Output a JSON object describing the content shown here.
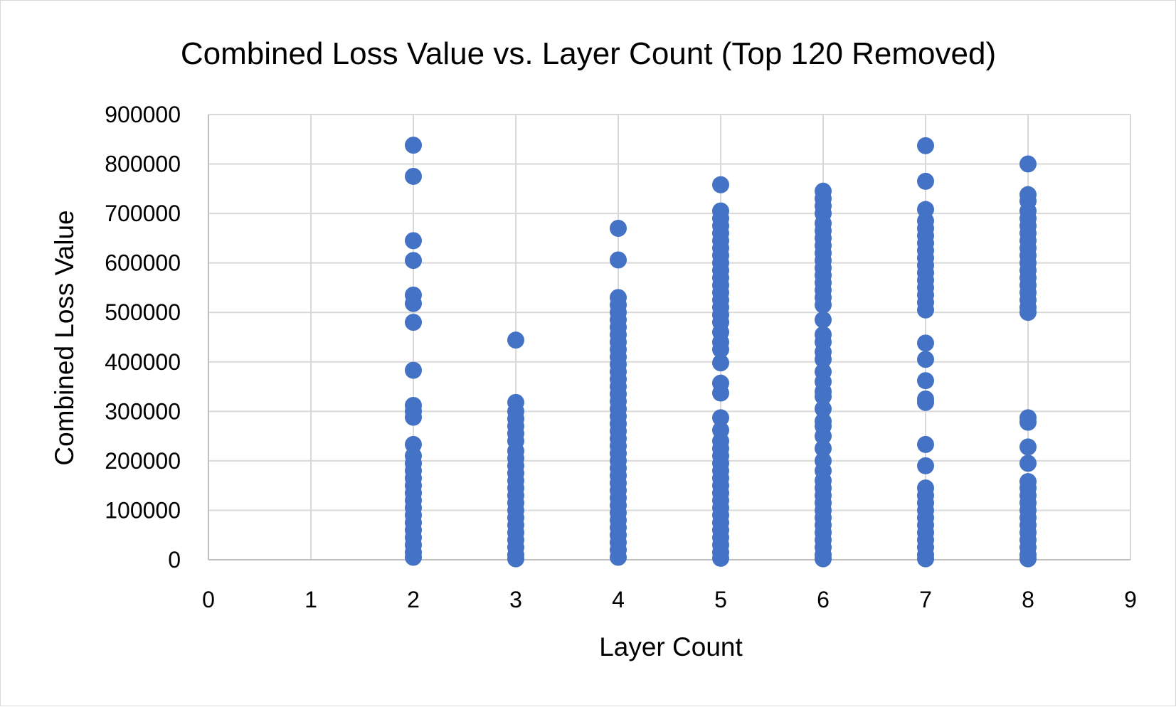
{
  "chart_data": {
    "type": "scatter",
    "title": "Combined Loss Value vs. Layer Count (Top 120 Removed)",
    "xlabel": "Layer Count",
    "ylabel": "Combined Loss Value",
    "xlim": [
      0,
      9
    ],
    "ylim": [
      0,
      900000
    ],
    "x_ticks": [
      "0",
      "1",
      "2",
      "3",
      "4",
      "5",
      "6",
      "7",
      "8",
      "9"
    ],
    "y_ticks": [
      "0",
      "100000",
      "200000",
      "300000",
      "400000",
      "500000",
      "600000",
      "700000",
      "800000",
      "900000"
    ],
    "grid": true,
    "legend": "none",
    "marker_color": "#4472C4",
    "series": [
      {
        "points": [
          {
            "x": 2,
            "y": 838000
          },
          {
            "x": 2,
            "y": 775000
          },
          {
            "x": 2,
            "y": 645000
          },
          {
            "x": 2,
            "y": 605000
          },
          {
            "x": 2,
            "y": 535000
          },
          {
            "x": 2,
            "y": 518000
          },
          {
            "x": 2,
            "y": 480000
          },
          {
            "x": 2,
            "y": 383000
          },
          {
            "x": 2,
            "y": 312000
          },
          {
            "x": 2,
            "y": 300000
          },
          {
            "x": 2,
            "y": 288000
          },
          {
            "x": 2,
            "y": 233000
          },
          {
            "x": 2,
            "y": 210000
          },
          {
            "x": 2,
            "y": 195000
          },
          {
            "x": 2,
            "y": 180000
          },
          {
            "x": 2,
            "y": 165000
          },
          {
            "x": 2,
            "y": 150000
          },
          {
            "x": 2,
            "y": 135000
          },
          {
            "x": 2,
            "y": 120000
          },
          {
            "x": 2,
            "y": 105000
          },
          {
            "x": 2,
            "y": 90000
          },
          {
            "x": 2,
            "y": 75000
          },
          {
            "x": 2,
            "y": 60000
          },
          {
            "x": 2,
            "y": 45000
          },
          {
            "x": 2,
            "y": 30000
          },
          {
            "x": 2,
            "y": 15000
          },
          {
            "x": 2,
            "y": 5000
          },
          {
            "x": 3,
            "y": 444000
          },
          {
            "x": 3,
            "y": 318000
          },
          {
            "x": 3,
            "y": 300000
          },
          {
            "x": 3,
            "y": 285000
          },
          {
            "x": 3,
            "y": 270000
          },
          {
            "x": 3,
            "y": 255000
          },
          {
            "x": 3,
            "y": 240000
          },
          {
            "x": 3,
            "y": 220000
          },
          {
            "x": 3,
            "y": 205000
          },
          {
            "x": 3,
            "y": 190000
          },
          {
            "x": 3,
            "y": 175000
          },
          {
            "x": 3,
            "y": 160000
          },
          {
            "x": 3,
            "y": 145000
          },
          {
            "x": 3,
            "y": 130000
          },
          {
            "x": 3,
            "y": 115000
          },
          {
            "x": 3,
            "y": 100000
          },
          {
            "x": 3,
            "y": 85000
          },
          {
            "x": 3,
            "y": 70000
          },
          {
            "x": 3,
            "y": 55000
          },
          {
            "x": 3,
            "y": 40000
          },
          {
            "x": 3,
            "y": 25000
          },
          {
            "x": 3,
            "y": 10000
          },
          {
            "x": 3,
            "y": 2000
          },
          {
            "x": 4,
            "y": 670000
          },
          {
            "x": 4,
            "y": 606000
          },
          {
            "x": 4,
            "y": 530000
          },
          {
            "x": 4,
            "y": 515000
          },
          {
            "x": 4,
            "y": 500000
          },
          {
            "x": 4,
            "y": 485000
          },
          {
            "x": 4,
            "y": 470000
          },
          {
            "x": 4,
            "y": 455000
          },
          {
            "x": 4,
            "y": 440000
          },
          {
            "x": 4,
            "y": 425000
          },
          {
            "x": 4,
            "y": 410000
          },
          {
            "x": 4,
            "y": 395000
          },
          {
            "x": 4,
            "y": 380000
          },
          {
            "x": 4,
            "y": 365000
          },
          {
            "x": 4,
            "y": 350000
          },
          {
            "x": 4,
            "y": 335000
          },
          {
            "x": 4,
            "y": 320000
          },
          {
            "x": 4,
            "y": 305000
          },
          {
            "x": 4,
            "y": 290000
          },
          {
            "x": 4,
            "y": 275000
          },
          {
            "x": 4,
            "y": 260000
          },
          {
            "x": 4,
            "y": 245000
          },
          {
            "x": 4,
            "y": 230000
          },
          {
            "x": 4,
            "y": 215000
          },
          {
            "x": 4,
            "y": 200000
          },
          {
            "x": 4,
            "y": 185000
          },
          {
            "x": 4,
            "y": 170000
          },
          {
            "x": 4,
            "y": 155000
          },
          {
            "x": 4,
            "y": 140000
          },
          {
            "x": 4,
            "y": 125000
          },
          {
            "x": 4,
            "y": 110000
          },
          {
            "x": 4,
            "y": 95000
          },
          {
            "x": 4,
            "y": 80000
          },
          {
            "x": 4,
            "y": 65000
          },
          {
            "x": 4,
            "y": 50000
          },
          {
            "x": 4,
            "y": 35000
          },
          {
            "x": 4,
            "y": 20000
          },
          {
            "x": 4,
            "y": 5000
          },
          {
            "x": 5,
            "y": 758000
          },
          {
            "x": 5,
            "y": 705000
          },
          {
            "x": 5,
            "y": 690000
          },
          {
            "x": 5,
            "y": 675000
          },
          {
            "x": 5,
            "y": 660000
          },
          {
            "x": 5,
            "y": 645000
          },
          {
            "x": 5,
            "y": 630000
          },
          {
            "x": 5,
            "y": 615000
          },
          {
            "x": 5,
            "y": 600000
          },
          {
            "x": 5,
            "y": 585000
          },
          {
            "x": 5,
            "y": 570000
          },
          {
            "x": 5,
            "y": 555000
          },
          {
            "x": 5,
            "y": 540000
          },
          {
            "x": 5,
            "y": 525000
          },
          {
            "x": 5,
            "y": 510000
          },
          {
            "x": 5,
            "y": 495000
          },
          {
            "x": 5,
            "y": 480000
          },
          {
            "x": 5,
            "y": 460000
          },
          {
            "x": 5,
            "y": 440000
          },
          {
            "x": 5,
            "y": 425000
          },
          {
            "x": 5,
            "y": 398000
          },
          {
            "x": 5,
            "y": 357000
          },
          {
            "x": 5,
            "y": 337000
          },
          {
            "x": 5,
            "y": 287000
          },
          {
            "x": 5,
            "y": 262000
          },
          {
            "x": 5,
            "y": 240000
          },
          {
            "x": 5,
            "y": 225000
          },
          {
            "x": 5,
            "y": 210000
          },
          {
            "x": 5,
            "y": 195000
          },
          {
            "x": 5,
            "y": 180000
          },
          {
            "x": 5,
            "y": 165000
          },
          {
            "x": 5,
            "y": 150000
          },
          {
            "x": 5,
            "y": 135000
          },
          {
            "x": 5,
            "y": 120000
          },
          {
            "x": 5,
            "y": 105000
          },
          {
            "x": 5,
            "y": 90000
          },
          {
            "x": 5,
            "y": 75000
          },
          {
            "x": 5,
            "y": 60000
          },
          {
            "x": 5,
            "y": 45000
          },
          {
            "x": 5,
            "y": 30000
          },
          {
            "x": 5,
            "y": 15000
          },
          {
            "x": 5,
            "y": 3000
          },
          {
            "x": 6,
            "y": 745000
          },
          {
            "x": 6,
            "y": 730000
          },
          {
            "x": 6,
            "y": 715000
          },
          {
            "x": 6,
            "y": 700000
          },
          {
            "x": 6,
            "y": 680000
          },
          {
            "x": 6,
            "y": 665000
          },
          {
            "x": 6,
            "y": 650000
          },
          {
            "x": 6,
            "y": 635000
          },
          {
            "x": 6,
            "y": 620000
          },
          {
            "x": 6,
            "y": 605000
          },
          {
            "x": 6,
            "y": 590000
          },
          {
            "x": 6,
            "y": 575000
          },
          {
            "x": 6,
            "y": 560000
          },
          {
            "x": 6,
            "y": 545000
          },
          {
            "x": 6,
            "y": 530000
          },
          {
            "x": 6,
            "y": 515000
          },
          {
            "x": 6,
            "y": 485000
          },
          {
            "x": 6,
            "y": 455000
          },
          {
            "x": 6,
            "y": 440000
          },
          {
            "x": 6,
            "y": 420000
          },
          {
            "x": 6,
            "y": 405000
          },
          {
            "x": 6,
            "y": 380000
          },
          {
            "x": 6,
            "y": 360000
          },
          {
            "x": 6,
            "y": 340000
          },
          {
            "x": 6,
            "y": 330000
          },
          {
            "x": 6,
            "y": 305000
          },
          {
            "x": 6,
            "y": 280000
          },
          {
            "x": 6,
            "y": 270000
          },
          {
            "x": 6,
            "y": 250000
          },
          {
            "x": 6,
            "y": 225000
          },
          {
            "x": 6,
            "y": 200000
          },
          {
            "x": 6,
            "y": 180000
          },
          {
            "x": 6,
            "y": 160000
          },
          {
            "x": 6,
            "y": 145000
          },
          {
            "x": 6,
            "y": 130000
          },
          {
            "x": 6,
            "y": 115000
          },
          {
            "x": 6,
            "y": 100000
          },
          {
            "x": 6,
            "y": 85000
          },
          {
            "x": 6,
            "y": 70000
          },
          {
            "x": 6,
            "y": 55000
          },
          {
            "x": 6,
            "y": 40000
          },
          {
            "x": 6,
            "y": 25000
          },
          {
            "x": 6,
            "y": 10000
          },
          {
            "x": 6,
            "y": 2000
          },
          {
            "x": 7,
            "y": 837000
          },
          {
            "x": 7,
            "y": 765000
          },
          {
            "x": 7,
            "y": 708000
          },
          {
            "x": 7,
            "y": 685000
          },
          {
            "x": 7,
            "y": 670000
          },
          {
            "x": 7,
            "y": 655000
          },
          {
            "x": 7,
            "y": 640000
          },
          {
            "x": 7,
            "y": 625000
          },
          {
            "x": 7,
            "y": 610000
          },
          {
            "x": 7,
            "y": 595000
          },
          {
            "x": 7,
            "y": 580000
          },
          {
            "x": 7,
            "y": 565000
          },
          {
            "x": 7,
            "y": 550000
          },
          {
            "x": 7,
            "y": 535000
          },
          {
            "x": 7,
            "y": 520000
          },
          {
            "x": 7,
            "y": 505000
          },
          {
            "x": 7,
            "y": 438000
          },
          {
            "x": 7,
            "y": 405000
          },
          {
            "x": 7,
            "y": 362000
          },
          {
            "x": 7,
            "y": 325000
          },
          {
            "x": 7,
            "y": 318000
          },
          {
            "x": 7,
            "y": 233000
          },
          {
            "x": 7,
            "y": 190000
          },
          {
            "x": 7,
            "y": 145000
          },
          {
            "x": 7,
            "y": 130000
          },
          {
            "x": 7,
            "y": 115000
          },
          {
            "x": 7,
            "y": 100000
          },
          {
            "x": 7,
            "y": 85000
          },
          {
            "x": 7,
            "y": 70000
          },
          {
            "x": 7,
            "y": 55000
          },
          {
            "x": 7,
            "y": 40000
          },
          {
            "x": 7,
            "y": 25000
          },
          {
            "x": 7,
            "y": 10000
          },
          {
            "x": 7,
            "y": 2000
          },
          {
            "x": 8,
            "y": 800000
          },
          {
            "x": 8,
            "y": 738000
          },
          {
            "x": 8,
            "y": 725000
          },
          {
            "x": 8,
            "y": 705000
          },
          {
            "x": 8,
            "y": 690000
          },
          {
            "x": 8,
            "y": 675000
          },
          {
            "x": 8,
            "y": 660000
          },
          {
            "x": 8,
            "y": 645000
          },
          {
            "x": 8,
            "y": 630000
          },
          {
            "x": 8,
            "y": 615000
          },
          {
            "x": 8,
            "y": 600000
          },
          {
            "x": 8,
            "y": 585000
          },
          {
            "x": 8,
            "y": 570000
          },
          {
            "x": 8,
            "y": 555000
          },
          {
            "x": 8,
            "y": 540000
          },
          {
            "x": 8,
            "y": 525000
          },
          {
            "x": 8,
            "y": 510000
          },
          {
            "x": 8,
            "y": 500000
          },
          {
            "x": 8,
            "y": 287000
          },
          {
            "x": 8,
            "y": 278000
          },
          {
            "x": 8,
            "y": 228000
          },
          {
            "x": 8,
            "y": 195000
          },
          {
            "x": 8,
            "y": 158000
          },
          {
            "x": 8,
            "y": 145000
          },
          {
            "x": 8,
            "y": 130000
          },
          {
            "x": 8,
            "y": 115000
          },
          {
            "x": 8,
            "y": 100000
          },
          {
            "x": 8,
            "y": 85000
          },
          {
            "x": 8,
            "y": 70000
          },
          {
            "x": 8,
            "y": 55000
          },
          {
            "x": 8,
            "y": 40000
          },
          {
            "x": 8,
            "y": 25000
          },
          {
            "x": 8,
            "y": 10000
          },
          {
            "x": 8,
            "y": 2000
          }
        ]
      }
    ]
  }
}
